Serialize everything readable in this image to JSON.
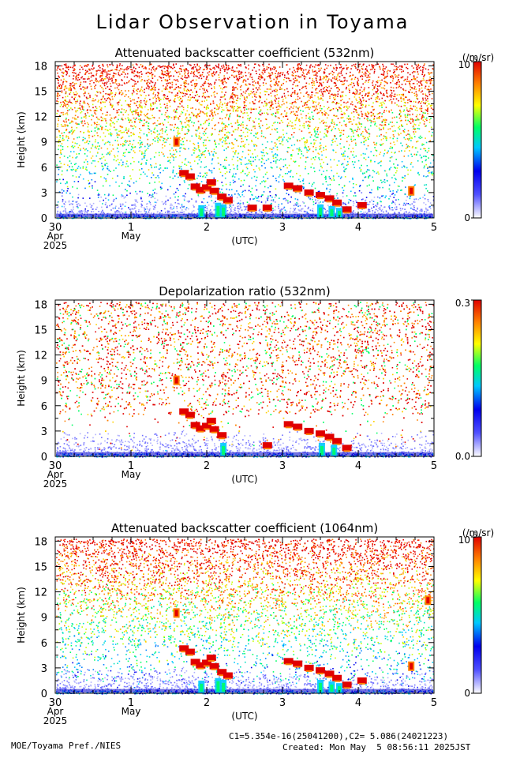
{
  "title": "Lidar Observation in Toyama",
  "footer": {
    "credit": "MOE/Toyama Pref./NIES",
    "constants": "C1=5.354e-16(25041200),C2= 5.086(24021223)",
    "created": "Created: Mon May  5 08:56:11 2025JST"
  },
  "chart_data": [
    {
      "type": "heatmap",
      "title": "Attenuated backscatter coefficient (532nm)",
      "ylabel": "Height (km)",
      "xlabel": "(UTC)",
      "x_ticks": [
        {
          "v": 0,
          "l": "30"
        },
        {
          "v": 1,
          "l": "1"
        },
        {
          "v": 2,
          "l": "2"
        },
        {
          "v": 3,
          "l": "3"
        },
        {
          "v": 4,
          "l": "4"
        },
        {
          "v": 5,
          "l": "5"
        }
      ],
      "x_sublabels": [
        {
          "v": 0,
          "l": "Apr"
        },
        {
          "v": 1,
          "l": "May"
        }
      ],
      "year_label": "2025",
      "xlim": [
        0,
        5
      ],
      "y_ticks": [
        0,
        3,
        6,
        9,
        12,
        15,
        18
      ],
      "ylim": [
        0,
        18.5
      ],
      "colorbar": {
        "unit": "(/m/sr)",
        "max_label": "10",
        "max_exp": "-5",
        "min_label": "0"
      },
      "features": {
        "cloud": [
          {
            "x": 1.7,
            "y": 5.3
          },
          {
            "x": 1.78,
            "y": 4.9
          },
          {
            "x": 1.85,
            "y": 3.7
          },
          {
            "x": 1.92,
            "y": 3.3
          },
          {
            "x": 2.0,
            "y": 3.6
          },
          {
            "x": 2.06,
            "y": 4.2
          },
          {
            "x": 2.1,
            "y": 3.2
          },
          {
            "x": 2.2,
            "y": 2.5
          },
          {
            "x": 2.28,
            "y": 2.1
          },
          {
            "x": 3.08,
            "y": 3.8
          },
          {
            "x": 3.2,
            "y": 3.5
          },
          {
            "x": 3.35,
            "y": 3.0
          },
          {
            "x": 3.5,
            "y": 2.7
          },
          {
            "x": 3.62,
            "y": 2.3
          },
          {
            "x": 3.72,
            "y": 1.8
          },
          {
            "x": 3.85,
            "y": 1.0
          },
          {
            "x": 4.05,
            "y": 1.5
          },
          {
            "x": 2.6,
            "y": 1.2
          },
          {
            "x": 2.8,
            "y": 1.2
          }
        ],
        "precip": [
          {
            "x": 1.93,
            "y": 1.5
          },
          {
            "x": 2.15,
            "y": 1.8
          },
          {
            "x": 2.22,
            "y": 1.6
          },
          {
            "x": 3.5,
            "y": 1.6
          },
          {
            "x": 3.65,
            "y": 1.4
          },
          {
            "x": 3.75,
            "y": 1.2
          }
        ],
        "aloft": [
          {
            "x": 1.6,
            "y": 9.0
          },
          {
            "x": 4.7,
            "y": 3.2
          }
        ]
      }
    },
    {
      "type": "heatmap",
      "title": "Depolarization ratio (532nm)",
      "ylabel": "Height (km)",
      "xlabel": "(UTC)",
      "x_ticks": [
        {
          "v": 0,
          "l": "30"
        },
        {
          "v": 1,
          "l": "1"
        },
        {
          "v": 2,
          "l": "2"
        },
        {
          "v": 3,
          "l": "3"
        },
        {
          "v": 4,
          "l": "4"
        },
        {
          "v": 5,
          "l": "5"
        }
      ],
      "x_sublabels": [
        {
          "v": 0,
          "l": "Apr"
        },
        {
          "v": 1,
          "l": "May"
        }
      ],
      "year_label": "2025",
      "xlim": [
        0,
        5
      ],
      "y_ticks": [
        0,
        3,
        6,
        9,
        12,
        15,
        18
      ],
      "ylim": [
        0,
        18.5
      ],
      "colorbar": {
        "unit": "",
        "max_label": "0.3",
        "max_exp": "",
        "min_label": "0.0"
      },
      "features": {
        "cloud": [
          {
            "x": 1.7,
            "y": 5.3
          },
          {
            "x": 1.78,
            "y": 4.9
          },
          {
            "x": 1.85,
            "y": 3.7
          },
          {
            "x": 1.92,
            "y": 3.3
          },
          {
            "x": 2.0,
            "y": 3.6
          },
          {
            "x": 2.06,
            "y": 4.2
          },
          {
            "x": 2.1,
            "y": 3.2
          },
          {
            "x": 2.2,
            "y": 2.5
          },
          {
            "x": 3.08,
            "y": 3.8
          },
          {
            "x": 3.2,
            "y": 3.5
          },
          {
            "x": 3.35,
            "y": 3.0
          },
          {
            "x": 3.5,
            "y": 2.7
          },
          {
            "x": 3.62,
            "y": 2.3
          },
          {
            "x": 3.72,
            "y": 1.8
          },
          {
            "x": 3.85,
            "y": 1.0
          },
          {
            "x": 2.8,
            "y": 1.3
          }
        ],
        "precip": [
          {
            "x": 2.22,
            "y": 1.6
          },
          {
            "x": 3.52,
            "y": 1.6
          },
          {
            "x": 3.68,
            "y": 1.4
          }
        ],
        "aloft": [
          {
            "x": 1.6,
            "y": 9.0
          }
        ]
      }
    },
    {
      "type": "heatmap",
      "title": "Attenuated backscatter coefficient (1064nm)",
      "ylabel": "Height (km)",
      "xlabel": "(UTC)",
      "x_ticks": [
        {
          "v": 0,
          "l": "30"
        },
        {
          "v": 1,
          "l": "1"
        },
        {
          "v": 2,
          "l": "2"
        },
        {
          "v": 3,
          "l": "3"
        },
        {
          "v": 4,
          "l": "4"
        },
        {
          "v": 5,
          "l": "5"
        }
      ],
      "x_sublabels": [
        {
          "v": 0,
          "l": "Apr"
        },
        {
          "v": 1,
          "l": "May"
        }
      ],
      "year_label": "2025",
      "xlim": [
        0,
        5
      ],
      "y_ticks": [
        0,
        3,
        6,
        9,
        12,
        15,
        18
      ],
      "ylim": [
        0,
        18.5
      ],
      "colorbar": {
        "unit": "(/m/sr)",
        "max_label": "10",
        "max_exp": "-5",
        "min_label": "0"
      },
      "features": {
        "cloud": [
          {
            "x": 1.7,
            "y": 5.3
          },
          {
            "x": 1.78,
            "y": 4.9
          },
          {
            "x": 1.85,
            "y": 3.7
          },
          {
            "x": 1.92,
            "y": 3.3
          },
          {
            "x": 2.0,
            "y": 3.6
          },
          {
            "x": 2.06,
            "y": 4.2
          },
          {
            "x": 2.1,
            "y": 3.2
          },
          {
            "x": 2.2,
            "y": 2.5
          },
          {
            "x": 2.28,
            "y": 2.1
          },
          {
            "x": 3.08,
            "y": 3.8
          },
          {
            "x": 3.2,
            "y": 3.5
          },
          {
            "x": 3.35,
            "y": 3.0
          },
          {
            "x": 3.5,
            "y": 2.7
          },
          {
            "x": 3.62,
            "y": 2.3
          },
          {
            "x": 3.72,
            "y": 1.8
          },
          {
            "x": 3.85,
            "y": 1.0
          },
          {
            "x": 4.05,
            "y": 1.5
          }
        ],
        "precip": [
          {
            "x": 1.93,
            "y": 1.5
          },
          {
            "x": 2.15,
            "y": 1.8
          },
          {
            "x": 2.22,
            "y": 1.6
          },
          {
            "x": 3.5,
            "y": 1.6
          },
          {
            "x": 3.65,
            "y": 1.4
          },
          {
            "x": 3.75,
            "y": 1.2
          }
        ],
        "aloft": [
          {
            "x": 1.6,
            "y": 9.5
          },
          {
            "x": 4.92,
            "y": 11.0
          },
          {
            "x": 4.7,
            "y": 3.2
          }
        ]
      }
    }
  ]
}
